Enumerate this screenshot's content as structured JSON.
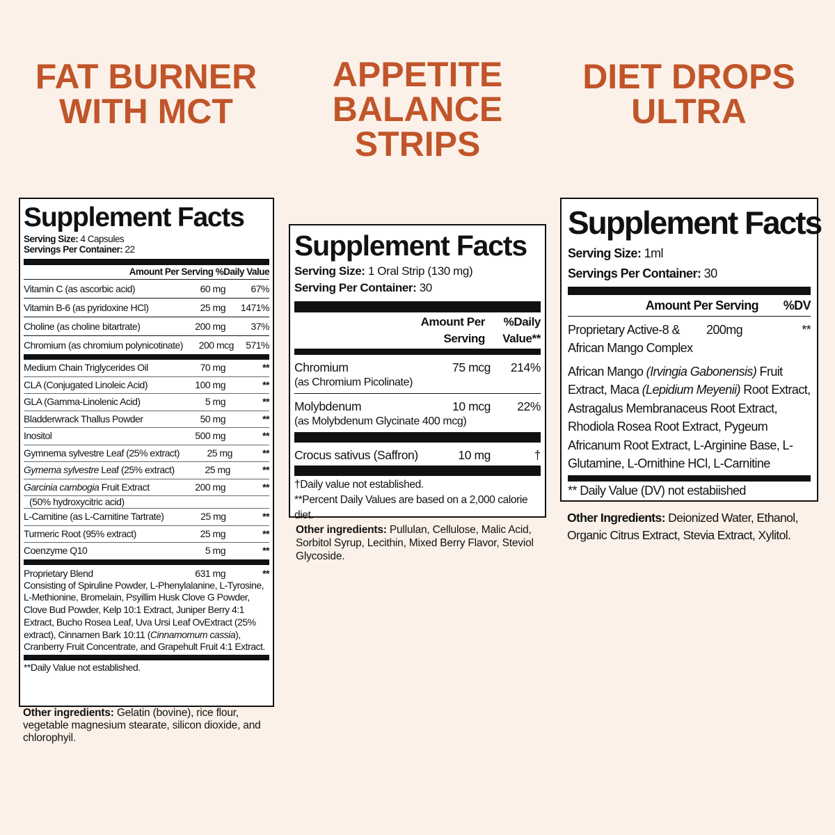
{
  "colors": {
    "title": "#c1552a",
    "background": "#fbf1e9",
    "label_border": "#111111"
  },
  "products": [
    {
      "title_lines": [
        "FAT BURNER",
        "WITH MCT"
      ]
    },
    {
      "title_lines": [
        "APPETITE",
        "BALANCE",
        "STRIPS"
      ]
    },
    {
      "title_lines": [
        "DIET DROPS",
        "ULTRA"
      ]
    }
  ],
  "left": {
    "heading": "Supplement Facts",
    "serving_size_label": "Serving Size:",
    "serving_size": " 4 Capsules",
    "servings_label": "Servings Per Container:",
    "servings": " 22",
    "header": "Amount Per Serving %Daily Value",
    "groups": [
      [
        {
          "name": [
            {
              "text": "Vitamin C (as ascorbic acid)"
            }
          ],
          "amount": "60 mg",
          "dv": "67%"
        },
        {
          "name": [
            {
              "text": "Vitamin B-6 (as pyridoxine HCl)"
            }
          ],
          "amount": "25 mg",
          "dv": "1471%"
        },
        {
          "name": [
            {
              "text": "Choline (as choline bitartrate)"
            }
          ],
          "amount": "200 mg",
          "dv": "37%"
        },
        {
          "name": [
            {
              "text": "Chromium (as chromium polynicotinate)"
            }
          ],
          "amount": "200 mcg",
          "dv": "571%"
        }
      ],
      [
        {
          "name": [
            {
              "text": "Medium Chain Triglycerides Oil"
            }
          ],
          "amount": "70 mg",
          "dv": "**"
        },
        {
          "name": [
            {
              "text": "CLA (Conjugated Linoleic Acid)"
            }
          ],
          "amount": "100 mg",
          "dv": "**"
        },
        {
          "name": [
            {
              "text": "GLA (Gamma-Linolenic Acid)"
            }
          ],
          "amount": "5 mg",
          "dv": "**"
        },
        {
          "name": [
            {
              "text": "Bladderwrack Thallus Powder"
            }
          ],
          "amount": "50 mg",
          "dv": "**"
        },
        {
          "name": [
            {
              "text": "Inositol"
            }
          ],
          "amount": "500 mg",
          "dv": "**"
        },
        {
          "name": [
            {
              "text": "Gymnema sylvestre Leaf (25% extract)"
            }
          ],
          "amount": "25 mg",
          "dv": "**"
        },
        {
          "name": [
            {
              "text": "Gymema sylvestre",
              "italic": true
            },
            {
              "text": " Leaf (25% extract)"
            }
          ],
          "amount": "25 mg",
          "dv": "**"
        },
        {
          "name": [
            {
              "text": "Garcinia cambogia",
              "italic": true
            },
            {
              "text": " Fruit Extract"
            }
          ],
          "sub": "(50% hydroxycitric acid)",
          "amount": "200 mg",
          "dv": "**"
        },
        {
          "name": [
            {
              "text": "L-Carnitine (as L-Carnitine Tartrate)"
            }
          ],
          "amount": "25 mg",
          "dv": "**"
        },
        {
          "name": [
            {
              "text": "Turmeric Root (95% extract)"
            }
          ],
          "amount": "25 mg",
          "dv": "**"
        },
        {
          "name": [
            {
              "text": "Coenzyme Q10"
            }
          ],
          "amount": "5 mg",
          "dv": "**"
        }
      ]
    ],
    "blend": {
      "name": "Proprietary Blend",
      "amount": "631 mg",
      "dv": "**",
      "text": [
        {
          "text": "Consisting of Spiruline Powder, L-Phenylalanine, L-Tyrosine, L-Methionine, Bromelain, Psyillim Husk Clove G  Powder, Clove Bud Powder, Kelp 10:1 Extract, Juniper Berry 4:1 Extract, Bucho Rosea Leaf, Uva Ursi Leaf OvExtract (25% extract), Cinnamen Bark 10:11 ("
        },
        {
          "text": "Cinnamomum cassia",
          "italic": true
        },
        {
          "text": "), Cranberry Fruit Concentrate, and Grapehult Fruit 4:1 Extract."
        }
      ]
    },
    "footnote": "**Daily Value not established.",
    "other_label": "Other ingredients:",
    "other_text": " Gelatin (bovine), rice flour, vegetable magnesium stearate, silicon dioxide, and chlorophyil."
  },
  "middle": {
    "heading": "Supplement Facts",
    "serving_size_label": "Serving Size:",
    "serving_size": " 1 Oral Strip (130 mg)",
    "servings_label": "Serving Per Container:",
    "servings": " 30",
    "header_amount": [
      "Amount Per",
      "Serving"
    ],
    "header_dv": [
      "%Daily",
      "Value**"
    ],
    "groups": [
      [
        {
          "name": [
            {
              "text": "Chromium"
            }
          ],
          "sub": "(as Chromium Picolinate)",
          "amount": "75 mcg",
          "dv": "214%"
        },
        {
          "name": [
            {
              "text": "Molybdenum"
            }
          ],
          "sub": "(as Molybdenum Glycinate 400 mcg)",
          "amount": "10 mcg",
          "dv": "22%"
        }
      ],
      [
        {
          "name": [
            {
              "text": "Crocus sativus (Saffron)"
            }
          ],
          "amount": "10 mg",
          "dv": "†"
        }
      ]
    ],
    "footnotes": [
      "†Daily value not established.",
      "**Percent Daily Values are based on a 2,000 calorie diet."
    ],
    "other_label": "Other ingredients:",
    "other_text": " Pullulan, Cellulose, Malic Acid, Sorbitol Syrup, Lecithin, Mixed Berry Flavor, Steviol Glycoside."
  },
  "right": {
    "heading": "Supplement Facts",
    "serving_size_label": "Serving Size:",
    "serving_size": " 1ml",
    "servings_label": "Servings Per Container:",
    "servings": " 30",
    "header_amount": "Amount Per Serving",
    "header_dv": "%DV",
    "row": {
      "name": [
        {
          "text": "Proprietary Active-8 &"
        }
      ],
      "sub": "African Mango Complex",
      "amount": "200mg",
      "dv": "**"
    },
    "ingredients": [
      {
        "text": "African Mango "
      },
      {
        "text": "(Irvingia Gabonensis)",
        "italic": true
      },
      {
        "text": " Fruit Extract, Maca "
      },
      {
        "text": "(Lepidium Meyenii)",
        "italic": true
      },
      {
        "text": " Root Extract, Astragalus Membranaceus Root Extract, Rhodiola Rosea Root Extract, Pygeum Africanum Root Extract, L-Arginine Base, L-Glutamine, L-Ornithine HCl, L-Carnitine"
      }
    ],
    "footnote": "** Daily Value (DV) not estabiished",
    "other_label": "Other Ingredients:",
    "other_text": " Deionized Water, Ethanol, Organic Citrus Extract, Stevia Extract, Xylitol."
  }
}
